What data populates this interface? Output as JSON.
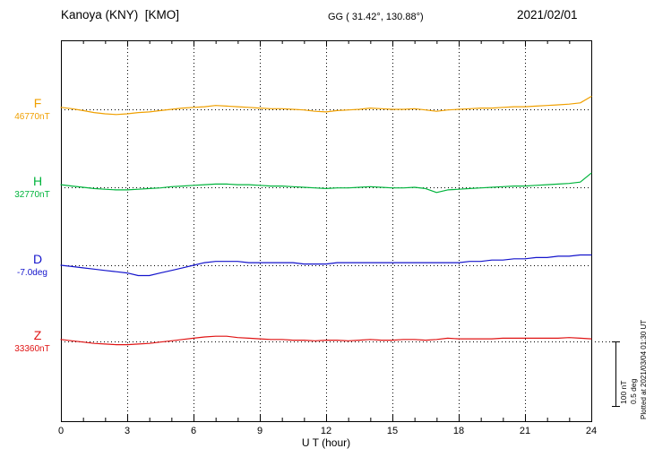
{
  "header": {
    "station": "Kanoya (KNY)  [KMO]",
    "coords": "GG ( 31.42°, 130.88°)",
    "date": "2021/02/01"
  },
  "footer": {
    "xlabel": "U T (hour)"
  },
  "side": {
    "plotted_at": "Plotted at 2021/03/04 01:30 UT",
    "scale_nt": "100 nT",
    "scale_deg": "0.5 deg"
  },
  "chart_data": {
    "type": "line",
    "title": "Kanoya (KNY) [KMO] magnetogram — 2021/02/01",
    "xlabel": "U T (hour)",
    "x_range": [
      0,
      24
    ],
    "x_ticks": [
      0,
      3,
      6,
      9,
      12,
      15,
      18,
      21,
      24
    ],
    "gridlines_hours": [
      3,
      6,
      9,
      12,
      15,
      18,
      21
    ],
    "grid": "dotted-vertical",
    "x_start": 0,
    "x_step_hours": 0.5,
    "values_are": "deviation from baseline, in series unit",
    "scale": {
      "nT_per_div": 100,
      "deg_per_div": 0.5
    },
    "series": [
      {
        "name": "F",
        "unit": "nT",
        "baseline_label": "46770nT",
        "baseline_value": 46770,
        "color": "#f0a000",
        "values": [
          3,
          1,
          -2,
          -5,
          -7,
          -8,
          -7,
          -5,
          -4,
          -2,
          0,
          2,
          3,
          4,
          6,
          5,
          4,
          3,
          2,
          1,
          1,
          0,
          -1,
          -3,
          -4,
          -2,
          -1,
          0,
          2,
          1,
          0,
          0,
          1,
          -1,
          -3,
          -1,
          0,
          1,
          2,
          2,
          3,
          4,
          4,
          5,
          6,
          7,
          8,
          10,
          20
        ]
      },
      {
        "name": "H",
        "unit": "nT",
        "baseline_label": "32770nT",
        "baseline_value": 32770,
        "color": "#00b43c",
        "values": [
          4,
          2,
          0,
          -2,
          -3,
          -4,
          -4,
          -3,
          -2,
          -1,
          1,
          2,
          3,
          4,
          5,
          5,
          4,
          4,
          3,
          2,
          2,
          1,
          0,
          -1,
          -2,
          -1,
          -1,
          0,
          1,
          0,
          -1,
          -1,
          0,
          -2,
          -8,
          -4,
          -3,
          -2,
          -1,
          0,
          1,
          2,
          2,
          3,
          4,
          5,
          6,
          8,
          22
        ]
      },
      {
        "name": "D",
        "unit": "deg",
        "baseline_label": "-7.0deg",
        "baseline_value": -7.0,
        "color": "#1414cc",
        "values": [
          0,
          -0.01,
          -0.02,
          -0.03,
          -0.04,
          -0.05,
          -0.06,
          -0.08,
          -0.08,
          -0.06,
          -0.04,
          -0.02,
          0,
          0.02,
          0.03,
          0.03,
          0.03,
          0.02,
          0.02,
          0.02,
          0.02,
          0.02,
          0.01,
          0.01,
          0.01,
          0.02,
          0.02,
          0.02,
          0.02,
          0.02,
          0.02,
          0.02,
          0.02,
          0.02,
          0.02,
          0.02,
          0.02,
          0.03,
          0.03,
          0.04,
          0.04,
          0.05,
          0.05,
          0.06,
          0.06,
          0.07,
          0.07,
          0.08,
          0.08
        ]
      },
      {
        "name": "Z",
        "unit": "nT",
        "baseline_label": "33360nT",
        "baseline_value": 33360,
        "color": "#e01414",
        "values": [
          3,
          1,
          -1,
          -3,
          -4,
          -5,
          -5,
          -4,
          -3,
          -1,
          1,
          3,
          5,
          7,
          8,
          8,
          6,
          5,
          4,
          3,
          3,
          2,
          2,
          1,
          2,
          2,
          1,
          2,
          3,
          2,
          2,
          3,
          3,
          2,
          3,
          5,
          4,
          4,
          4,
          4,
          5,
          5,
          5,
          5,
          5,
          5,
          6,
          5,
          4
        ]
      }
    ]
  }
}
